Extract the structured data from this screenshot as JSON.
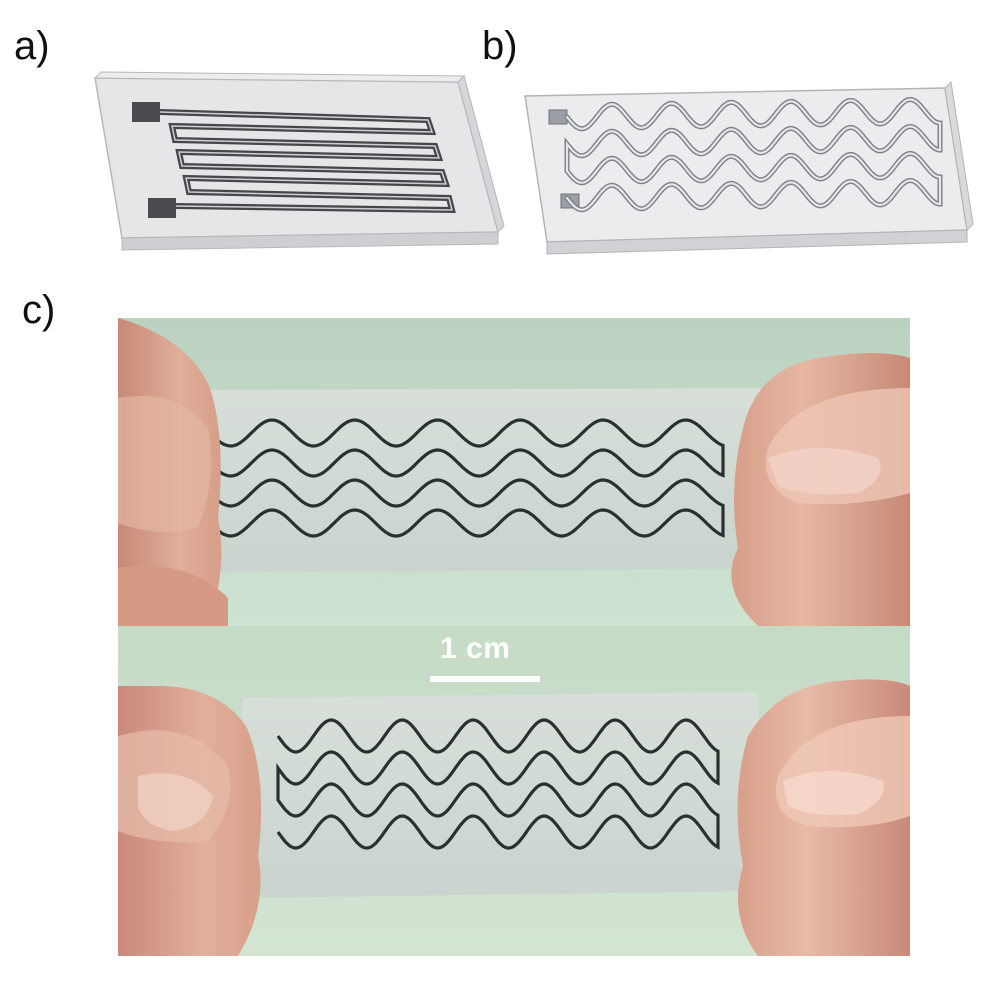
{
  "panels": {
    "a": {
      "label": "a)"
    },
    "b": {
      "label": "b)"
    },
    "c": {
      "label": "c)"
    }
  },
  "scale_bar": {
    "label": "1 cm"
  },
  "colors": {
    "substrate_face": "#e4e4e6",
    "substrate_edge": "#c9c9cc",
    "trace": "#444448",
    "pad_b": "#9a9ea6",
    "photo_background": "#cfe3cf",
    "skin": "#d9a28f",
    "film": "#d8e0dc",
    "ink": "#2a3432"
  }
}
